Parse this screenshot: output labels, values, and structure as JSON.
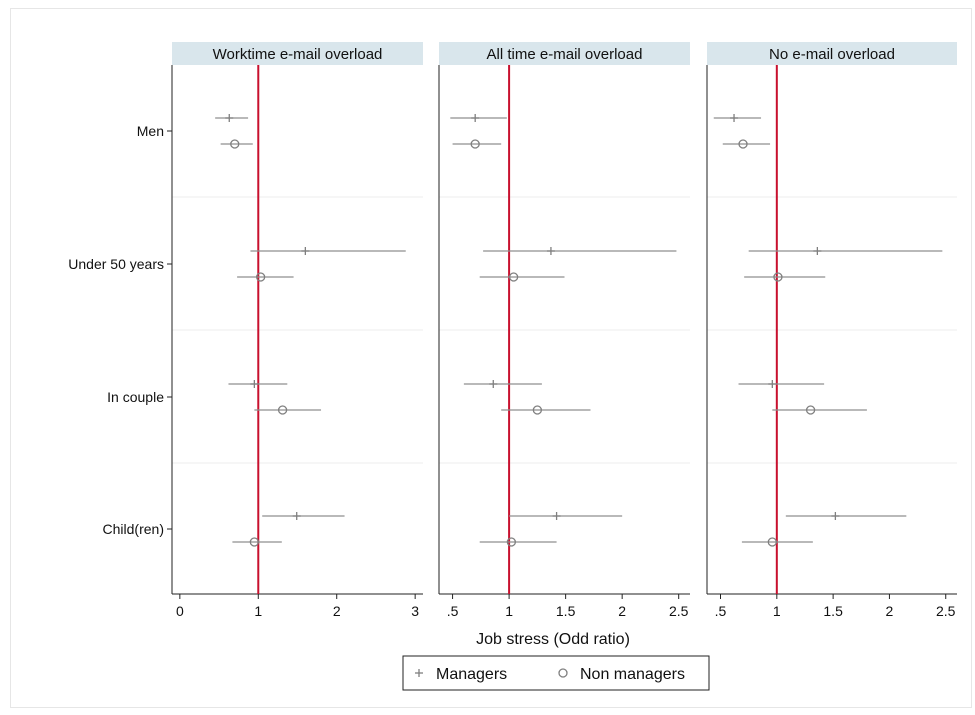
{
  "chart_data": {
    "type": "scatter",
    "subtype": "forest-plot-with-confidence-intervals",
    "xlabel": "Job stress (Odd ratio)",
    "categories": [
      "Men",
      "Under 50 years",
      "In couple",
      "Child(ren)"
    ],
    "reference_line": 1,
    "reference_line_color": "#c8102e",
    "series": [
      {
        "name": "Managers",
        "marker": "+",
        "marker_glyph": "+"
      },
      {
        "name": "Non managers",
        "marker": "circle",
        "marker_glyph": "o"
      }
    ],
    "panels": [
      {
        "title": "Worktime e-mail overload",
        "xlim": [
          -0.1,
          3.1
        ],
        "xticks": [
          0,
          1,
          2,
          3
        ],
        "xtick_labels": [
          "0",
          "1",
          "2",
          "3"
        ],
        "data": {
          "Managers": [
            {
              "category": "Men",
              "or": 0.63,
              "lo": 0.45,
              "hi": 0.87
            },
            {
              "category": "Under 50 years",
              "or": 1.6,
              "lo": 0.9,
              "hi": 2.88
            },
            {
              "category": "In couple",
              "or": 0.95,
              "lo": 0.62,
              "hi": 1.37
            },
            {
              "category": "Child(ren)",
              "or": 1.49,
              "lo": 1.05,
              "hi": 2.1
            }
          ],
          "Non managers": [
            {
              "category": "Men",
              "or": 0.7,
              "lo": 0.52,
              "hi": 0.93
            },
            {
              "category": "Under 50 years",
              "or": 1.03,
              "lo": 0.73,
              "hi": 1.45
            },
            {
              "category": "In couple",
              "or": 1.31,
              "lo": 0.95,
              "hi": 1.8
            },
            {
              "category": "Child(ren)",
              "or": 0.95,
              "lo": 0.67,
              "hi": 1.3
            }
          ]
        }
      },
      {
        "title": "All time e-mail overload",
        "xlim": [
          0.38,
          2.6
        ],
        "xticks": [
          0.5,
          1,
          1.5,
          2,
          2.5
        ],
        "xtick_labels": [
          ".5",
          "1",
          "1.5",
          "2",
          "2.5"
        ],
        "data": {
          "Managers": [
            {
              "category": "Men",
              "or": 0.7,
              "lo": 0.48,
              "hi": 0.98
            },
            {
              "category": "Under 50 years",
              "or": 1.37,
              "lo": 0.77,
              "hi": 2.48
            },
            {
              "category": "In couple",
              "or": 0.86,
              "lo": 0.6,
              "hi": 1.29
            },
            {
              "category": "Child(ren)",
              "or": 1.42,
              "lo": 1.0,
              "hi": 2.0
            }
          ],
          "Non managers": [
            {
              "category": "Men",
              "or": 0.7,
              "lo": 0.5,
              "hi": 0.93
            },
            {
              "category": "Under 50 years",
              "or": 1.04,
              "lo": 0.74,
              "hi": 1.49
            },
            {
              "category": "In couple",
              "or": 1.25,
              "lo": 0.93,
              "hi": 1.72
            },
            {
              "category": "Child(ren)",
              "or": 1.02,
              "lo": 0.74,
              "hi": 1.42
            }
          ]
        }
      },
      {
        "title": "No e-mail overload",
        "xlim": [
          0.38,
          2.6
        ],
        "xticks": [
          0.5,
          1,
          1.5,
          2,
          2.5
        ],
        "xtick_labels": [
          ".5",
          "1",
          "1.5",
          "2",
          "2.5"
        ],
        "data": {
          "Managers": [
            {
              "category": "Men",
              "or": 0.62,
              "lo": 0.44,
              "hi": 0.86
            },
            {
              "category": "Under 50 years",
              "or": 1.36,
              "lo": 0.75,
              "hi": 2.47
            },
            {
              "category": "In couple",
              "or": 0.96,
              "lo": 0.66,
              "hi": 1.42
            },
            {
              "category": "Child(ren)",
              "or": 1.52,
              "lo": 1.08,
              "hi": 2.15
            }
          ],
          "Non managers": [
            {
              "category": "Men",
              "or": 0.7,
              "lo": 0.52,
              "hi": 0.94
            },
            {
              "category": "Under 50 years",
              "or": 1.01,
              "lo": 0.71,
              "hi": 1.43
            },
            {
              "category": "In couple",
              "or": 1.3,
              "lo": 0.96,
              "hi": 1.8
            },
            {
              "category": "Child(ren)",
              "or": 0.96,
              "lo": 0.69,
              "hi": 1.32
            }
          ]
        }
      }
    ],
    "grid": "horizontal separators between categories",
    "legend_position": "bottom-center",
    "colors": {
      "strip_bg": "#d9e6ec",
      "ci_line": "#8f8f8f",
      "marker": "#7f7f7f"
    }
  }
}
